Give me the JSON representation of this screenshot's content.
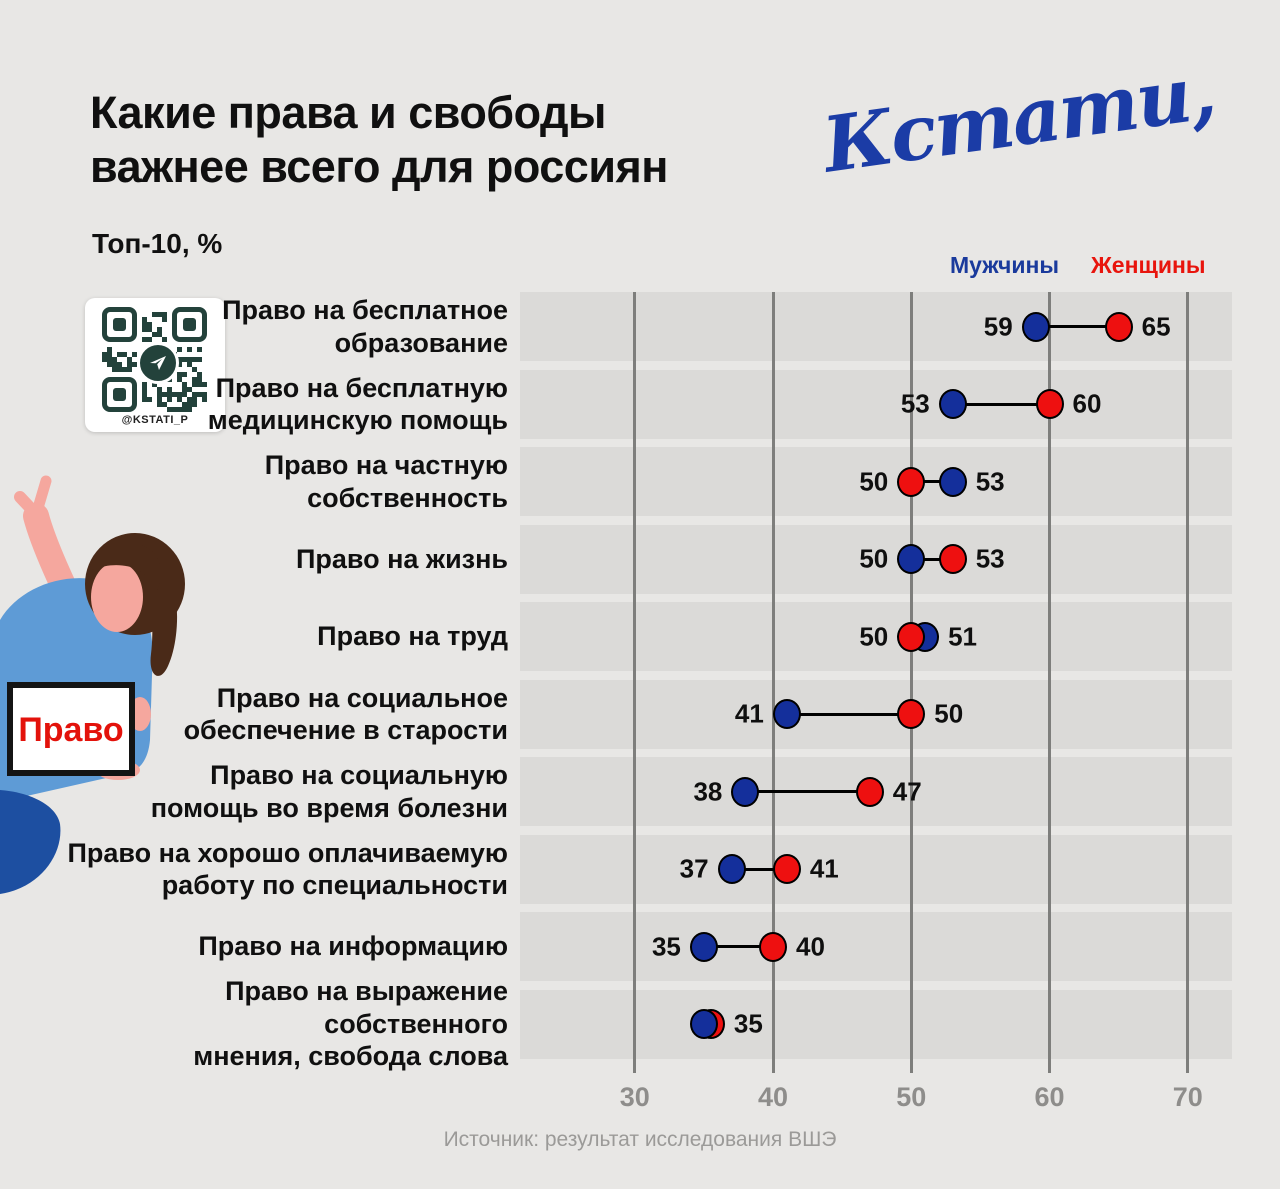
{
  "header": {
    "title": "Какие права и свободы\nважнее всего для россиян",
    "subtitle": "Топ-10, %",
    "logo_text": "Кстати,"
  },
  "qr": {
    "label": "@KSTATI_P"
  },
  "sign": {
    "label": "Право"
  },
  "legend": {
    "men_label": "Мужчины",
    "women_label": "Женщины",
    "men_color": "#1A3A9C",
    "women_color": "#E8150D"
  },
  "colors": {
    "background": "#E8E7E5",
    "band": "#DBDAD8",
    "gridline": "#7E7E7C",
    "dot_outline": "#000000",
    "axis_text": "#8E8D8B",
    "logo": "#1B3CA6",
    "sign_text": "#E3120B"
  },
  "chart_data": {
    "type": "dumbbell",
    "title": "Какие права и свободы важнее всего для россиян",
    "subtitle": "Топ-10, %",
    "categories": [
      "Право на бесплатное\nобразование",
      "Право на бесплатную\nмедицинскую помощь",
      "Право на частную\nсобственность",
      "Право на жизнь",
      "Право на труд",
      "Право на социальное\nобеспечение в старости",
      "Право на социальную\nпомощь во время болезни",
      "Право на хорошо оплачиваемую\nработу по специальности",
      "Право на информацию",
      "Право на выражение собственного\nмнения, свобода слова"
    ],
    "series": [
      {
        "name": "Мужчины",
        "color": "#142F9B",
        "values": [
          59,
          53,
          53,
          50,
          51,
          41,
          38,
          37,
          35,
          35
        ]
      },
      {
        "name": "Женщины",
        "color": "#EE1010",
        "values": [
          65,
          60,
          50,
          53,
          50,
          50,
          47,
          41,
          40,
          35
        ]
      }
    ],
    "xticks": [
      30,
      40,
      50,
      60,
      70
    ],
    "xlim": [
      21.7,
      73.2
    ],
    "grid": "vertical",
    "legend_position": "top-right"
  },
  "source": "Источник: результат исследования ВШЭ"
}
